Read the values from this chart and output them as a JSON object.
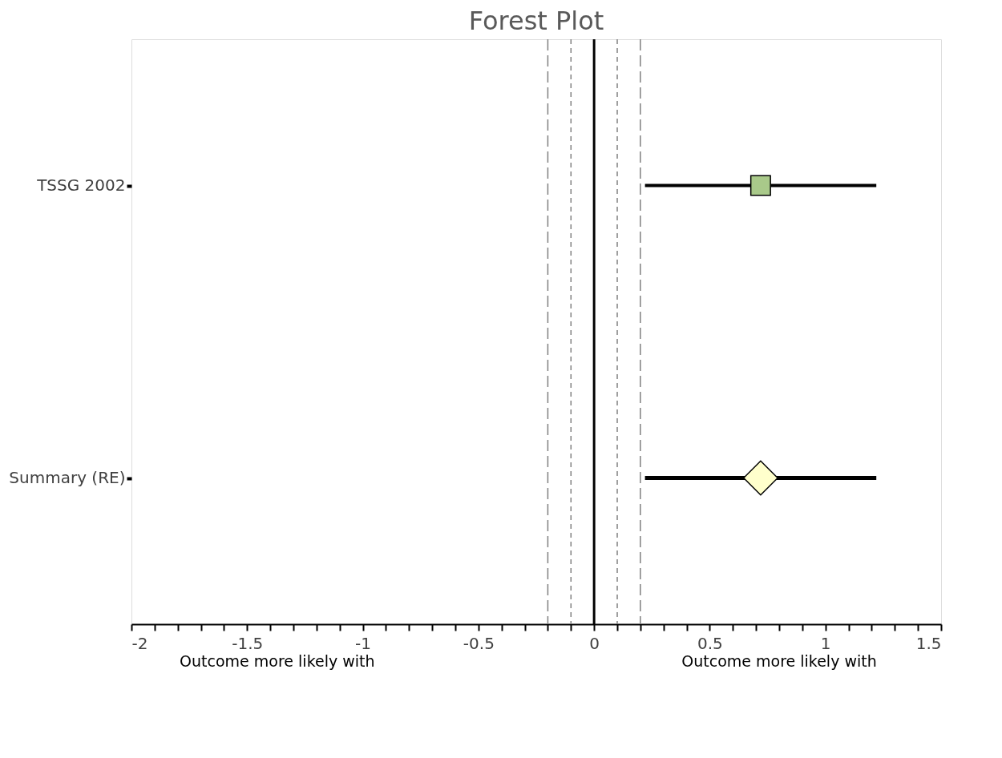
{
  "chart_data": {
    "type": "scatter",
    "orientation": "horizontal",
    "title": "Forest Plot",
    "categories": [
      "TSSG 2002",
      "Summary (RE)"
    ],
    "series": [
      {
        "color": "#a9c98a",
        "marker": "square",
        "values": [
          0.72,
          null
        ],
        "errors": [
          [
            0.22,
            1.22
          ],
          null
        ]
      },
      {
        "color": "#ffffcc",
        "marker": "diamond",
        "values": [
          null,
          0.72
        ],
        "errors": [
          null,
          [
            0.22,
            1.22
          ]
        ]
      }
    ],
    "xlim": [
      -2,
      1.5
    ],
    "xticks": [
      -2,
      {
        "value": -1.9,
        "label": null
      },
      {
        "value": -1.8,
        "label": null
      },
      {
        "value": -1.7,
        "label": null
      },
      {
        "value": -1.6,
        "label": null
      },
      -1.5,
      {
        "value": -1.4,
        "label": null
      },
      {
        "value": -1.3,
        "label": null
      },
      {
        "value": -1.2,
        "label": null
      },
      {
        "value": -1.1,
        "label": null
      },
      -1,
      {
        "value": -0.9,
        "label": null
      },
      {
        "value": -0.8,
        "label": null
      },
      {
        "value": -0.7,
        "label": null
      },
      {
        "value": -0.6,
        "label": null
      },
      -0.5,
      {
        "value": -0.4,
        "label": null
      },
      {
        "value": -0.3,
        "label": null
      },
      {
        "value": -0.2,
        "label": null
      },
      {
        "value": -0.1,
        "label": null
      },
      0,
      {
        "value": 0.1,
        "label": null
      },
      {
        "value": 0.2,
        "label": null
      },
      {
        "value": 0.3,
        "label": null
      },
      {
        "value": 0.4,
        "label": null
      },
      0.5,
      {
        "value": 0.6,
        "label": null
      },
      {
        "value": 0.7,
        "label": null
      },
      {
        "value": 0.8,
        "label": null
      },
      {
        "value": 0.9,
        "label": null
      },
      1,
      {
        "value": 1.1,
        "label": null
      },
      {
        "value": 1.2,
        "label": null
      },
      {
        "value": 1.3,
        "label": null
      },
      {
        "value": 1.4,
        "label": null
      },
      1.5
    ],
    "ref_lines": [
      {
        "axis": "x",
        "value": 0,
        "color": "#000000",
        "line_style": "solid"
      },
      {
        "axis": "x",
        "value": -0.2,
        "color": "#808080",
        "line_style": "dashed"
      },
      {
        "axis": "x",
        "value": -0.1,
        "color": "#808080",
        "line_style": "dotted"
      },
      {
        "axis": "x",
        "value": 0.1,
        "color": "#808080",
        "line_style": "dotted"
      },
      {
        "axis": "x",
        "value": 0.2,
        "color": "#808080",
        "line_style": "dashed"
      }
    ],
    "annotations": [
      "Outcome more likely with",
      "Outcome more likely with"
    ],
    "grid": false
  }
}
